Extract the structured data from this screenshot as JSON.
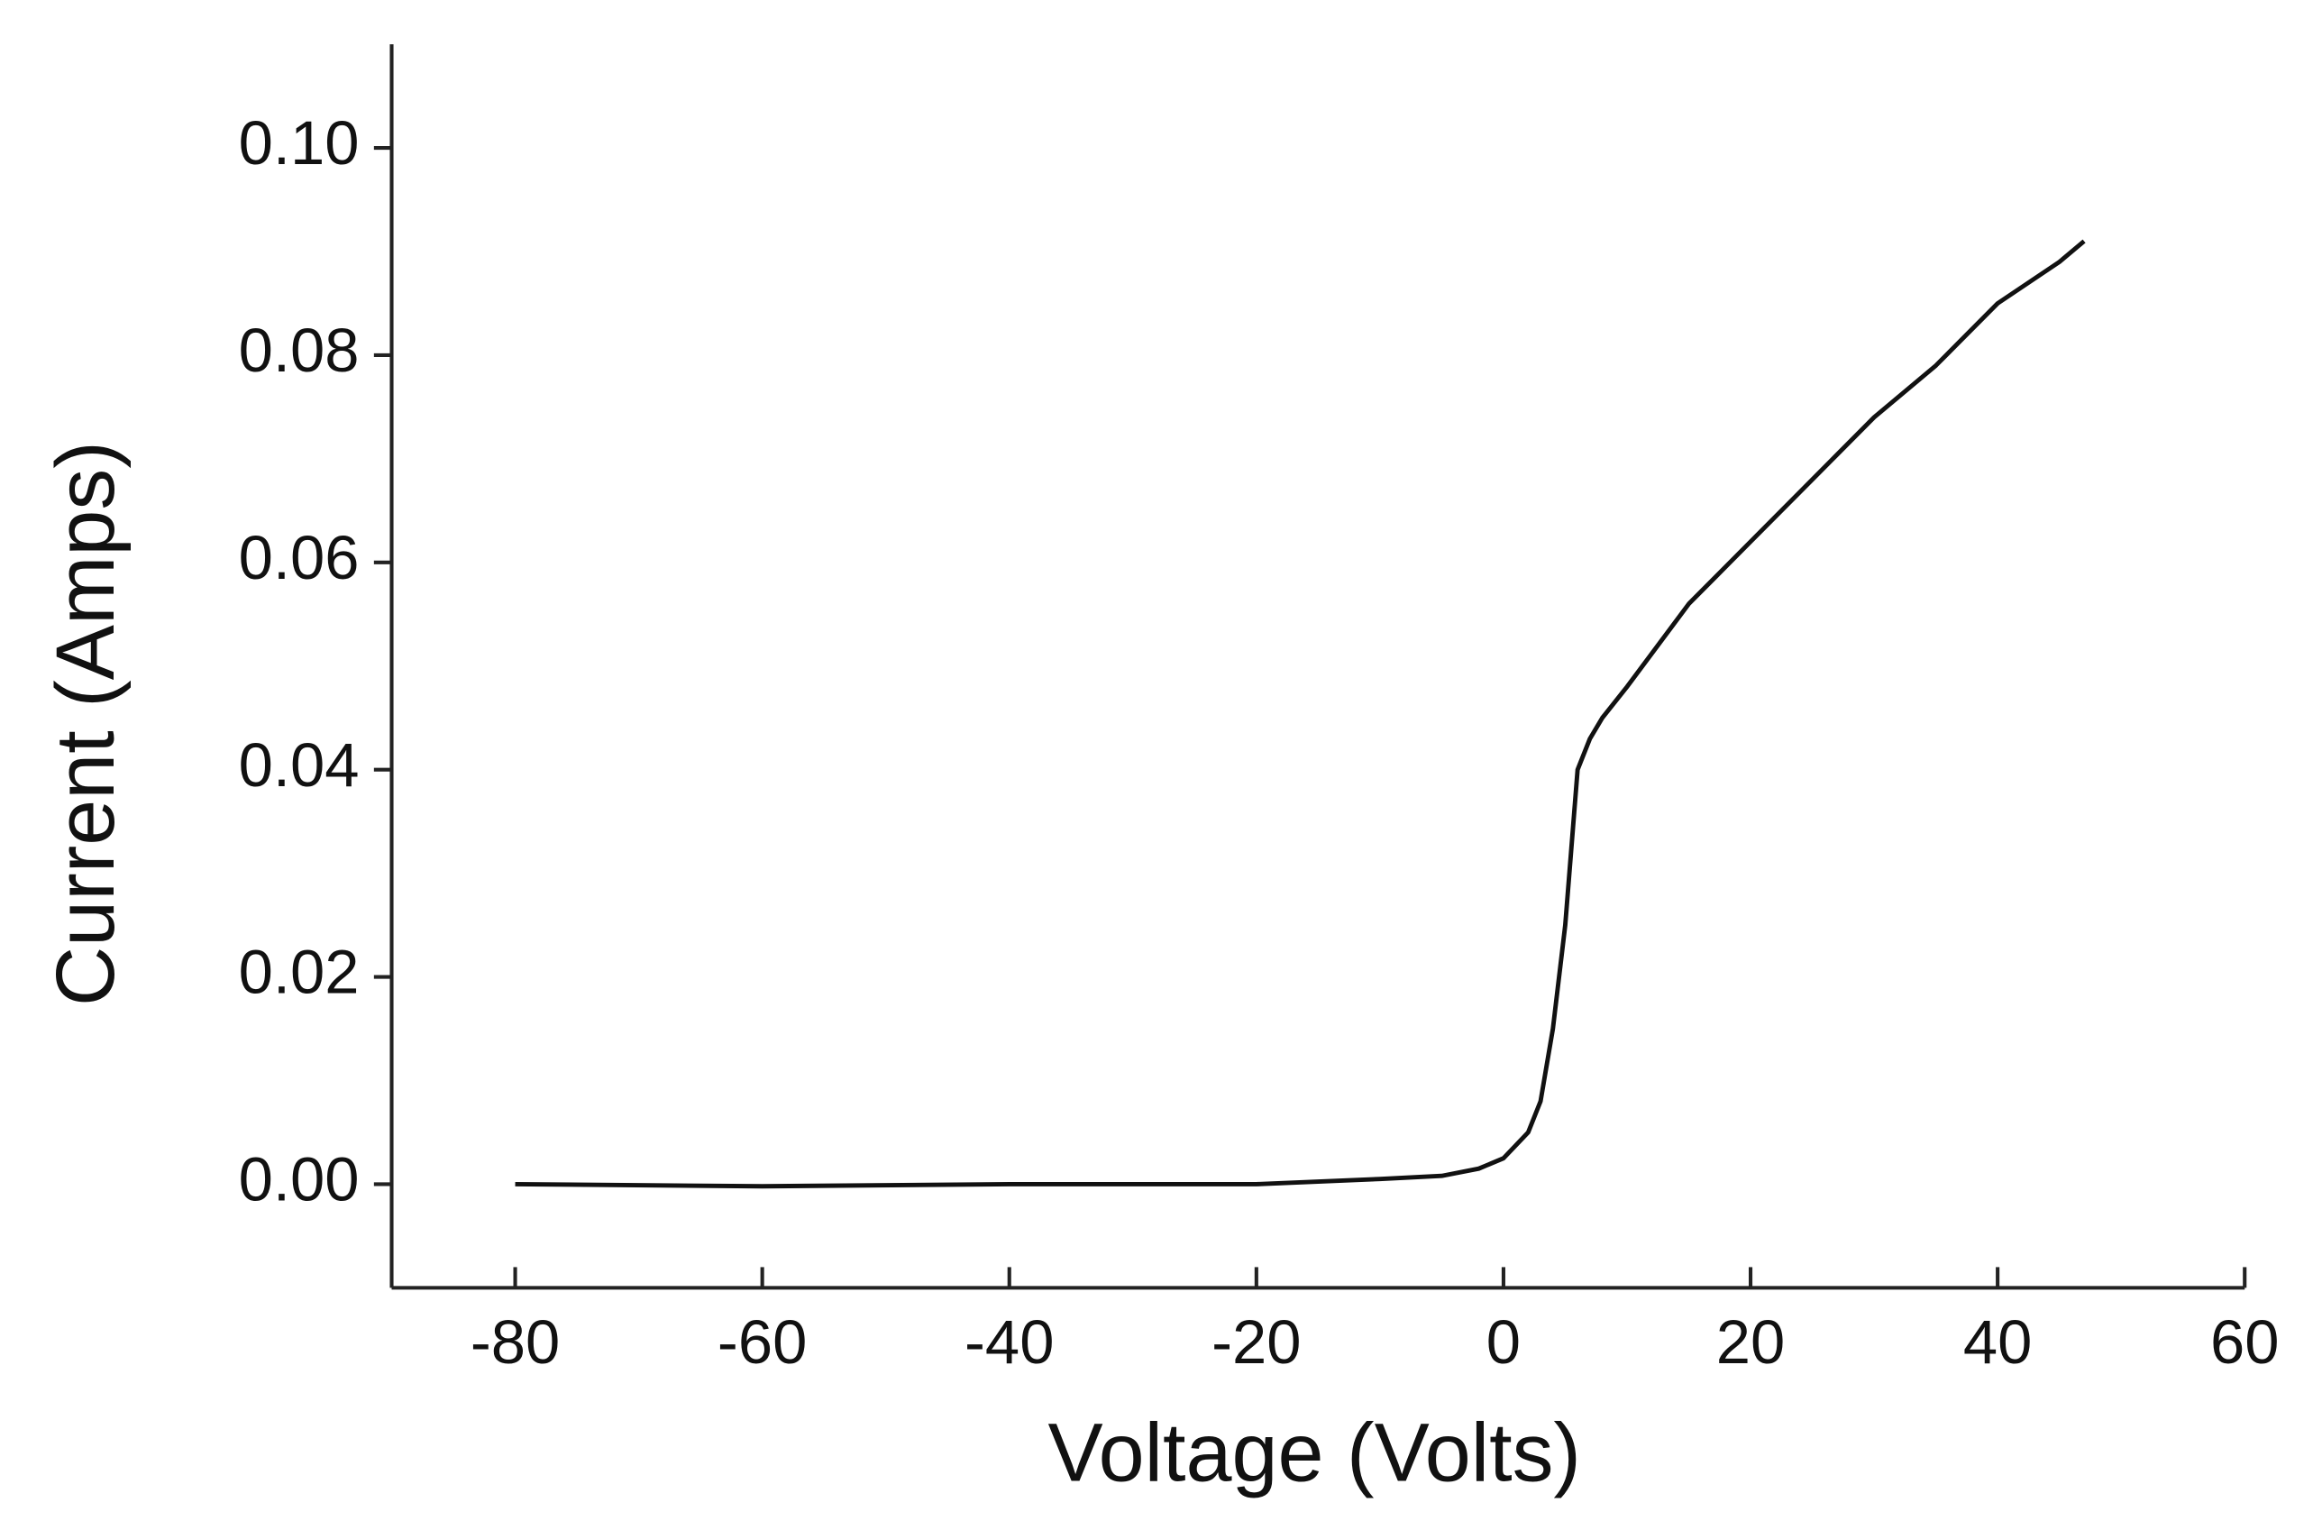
{
  "chart_data": {
    "type": "line",
    "x_label": "Voltage (Volts)",
    "y_label": "Current (Amps)",
    "xlim": [
      -90,
      60
    ],
    "ylim": [
      -0.01,
      0.11
    ],
    "xticks": [
      -80,
      -60,
      -40,
      -20,
      0,
      20,
      40,
      60
    ],
    "yticks": [
      {
        "value": 0,
        "label": "0.00"
      },
      {
        "value": 0.02,
        "label": "0.02"
      },
      {
        "value": 0.04,
        "label": "0.04"
      },
      {
        "value": 0.06,
        "label": "0.06"
      },
      {
        "value": 0.08,
        "label": "0.08"
      },
      {
        "value": 0.1,
        "label": "0.10"
      }
    ],
    "grid": false,
    "series": [
      {
        "color": "#111111",
        "x": [
          -80,
          -60,
          -40,
          -20,
          -10,
          -5,
          -2,
          0,
          2,
          3,
          4,
          5,
          6,
          7,
          8,
          10,
          15,
          20,
          25,
          30,
          35,
          40,
          45,
          47
        ],
        "values": [
          0,
          -0.0002,
          0,
          0,
          0.0005,
          0.0008,
          0.0015,
          0.0025,
          0.005,
          0.008,
          0.015,
          0.025,
          0.04,
          0.043,
          0.045,
          0.048,
          0.056,
          0.062,
          0.068,
          0.074,
          0.079,
          0.085,
          0.089,
          0.091
        ]
      }
    ]
  }
}
